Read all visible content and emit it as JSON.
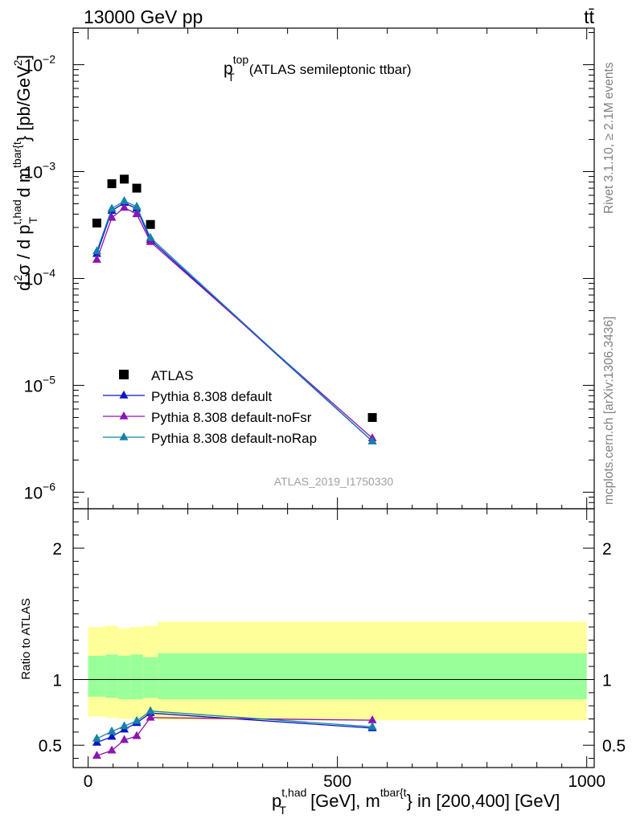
{
  "header": {
    "left": "13000 GeV pp",
    "right": "tt̄"
  },
  "side_labels": {
    "rivet": "Rivet 3.1.10, ≥ 2.1M events",
    "mcplots": "mcplots.cern.ch [arXiv:1306.3436]"
  },
  "chart_data": [
    {
      "type": "scatter",
      "panel": "main",
      "title_main": "p",
      "title_sup": "top",
      "title_sub": "T",
      "title_rest": "(ATLAS semileptonic ttbar)",
      "analysis_label": "ATLAS_2019_I1750330",
      "ylabel": "d²σ / d p_T^{t,had} d m^{tbar{t}} [pb/GeV²]",
      "ylabel_parts": {
        "lead": "d",
        "sup2a": "2",
        "sigma": "σ / d p",
        "sup_had": "t,had",
        "sub_T": "T",
        "mid": " d m",
        "sup_tbar": "tbar{t",
        "tail": "} [pb/GeV",
        "sup2b": "2",
        "end": "]"
      },
      "yscale": "log",
      "ylim": [
        7e-07,
        0.022
      ],
      "xlim": [
        -30,
        1015
      ],
      "yticks": [
        {
          "value": 1e-06,
          "base": "10",
          "exp": "−6"
        },
        {
          "value": 1e-05,
          "base": "10",
          "exp": "−5"
        },
        {
          "value": 0.0001,
          "base": "10",
          "exp": "−4"
        },
        {
          "value": 0.001,
          "base": "10",
          "exp": "−3"
        },
        {
          "value": 0.01,
          "base": "10",
          "exp": "−2"
        }
      ],
      "legend_position": "bottom-left",
      "series": [
        {
          "name": "ATLAS",
          "marker": "square",
          "color": "#000000",
          "x": [
            17.5,
            47.5,
            72.5,
            97.5,
            125,
            570
          ],
          "y": [
            0.00033,
            0.00077,
            0.00085,
            0.0007,
            0.00032,
            5e-06
          ]
        },
        {
          "name": "Pythia 8.308 default",
          "marker": "triangle",
          "color": "#0a14c8",
          "x": [
            17.5,
            47.5,
            72.5,
            97.5,
            125,
            570
          ],
          "y": [
            0.00017,
            0.00043,
            0.00051,
            0.00045,
            0.00023,
            3e-06
          ]
        },
        {
          "name": "Pythia 8.308 default-noFsr",
          "marker": "triangle",
          "color": "#8c14b4",
          "x": [
            17.5,
            47.5,
            72.5,
            97.5,
            125,
            570
          ],
          "y": [
            0.00015,
            0.00037,
            0.00046,
            0.0004,
            0.00022,
            3.2e-06
          ]
        },
        {
          "name": "Pythia 8.308 default-noRap",
          "marker": "triangle",
          "color": "#1482aa",
          "x": [
            17.5,
            47.5,
            72.5,
            97.5,
            125,
            570
          ],
          "y": [
            0.00018,
            0.00045,
            0.00053,
            0.00047,
            0.00024,
            3e-06
          ]
        }
      ]
    },
    {
      "type": "scatter",
      "panel": "ratio",
      "ylabel": "Ratio to ATLAS",
      "ylim": [
        0.33,
        2.3
      ],
      "xlim": [
        -30,
        1015
      ],
      "yticks": [
        0.5,
        1,
        2
      ],
      "ytick_labels": [
        "0.5",
        "1",
        "2"
      ],
      "xticks": [
        0,
        500,
        1000
      ],
      "xtick_labels": [
        "0",
        "500",
        "1000"
      ],
      "xlabel_parts": {
        "p": "p",
        "sup_had": "t,had",
        "sub_T": "T",
        "mid": " [GeV], m",
        "sup_tbar": "tbar{t",
        "tail": "} in [200,400] [GeV]"
      },
      "reference_line": 1,
      "bands": {
        "edges": [
          0,
          35,
          60,
          85,
          110,
          140,
          1000
        ],
        "yellow_low": [
          0.72,
          0.71,
          0.7,
          0.7,
          0.71,
          0.69
        ],
        "yellow_high": [
          1.4,
          1.41,
          1.39,
          1.4,
          1.41,
          1.44
        ],
        "green_low": [
          0.87,
          0.86,
          0.85,
          0.85,
          0.86,
          0.85
        ],
        "green_high": [
          1.18,
          1.19,
          1.18,
          1.19,
          1.17,
          1.2
        ],
        "yellow_color": "#ffff99",
        "green_color": "#99ff99"
      },
      "series": [
        {
          "name": "Pythia 8.308 default",
          "color": "#0a14c8",
          "x": [
            17.5,
            47.5,
            72.5,
            97.5,
            125,
            570
          ],
          "y": [
            0.52,
            0.565,
            0.62,
            0.67,
            0.745,
            0.63
          ]
        },
        {
          "name": "Pythia 8.308 default-noFsr",
          "color": "#8c14b4",
          "x": [
            17.5,
            47.5,
            72.5,
            97.5,
            125,
            570
          ],
          "y": [
            0.42,
            0.46,
            0.54,
            0.57,
            0.71,
            0.69
          ]
        },
        {
          "name": "Pythia 8.308 default-noRap",
          "color": "#1482aa",
          "x": [
            17.5,
            47.5,
            72.5,
            97.5,
            125,
            570
          ],
          "y": [
            0.55,
            0.605,
            0.645,
            0.685,
            0.76,
            0.64
          ]
        }
      ]
    }
  ]
}
